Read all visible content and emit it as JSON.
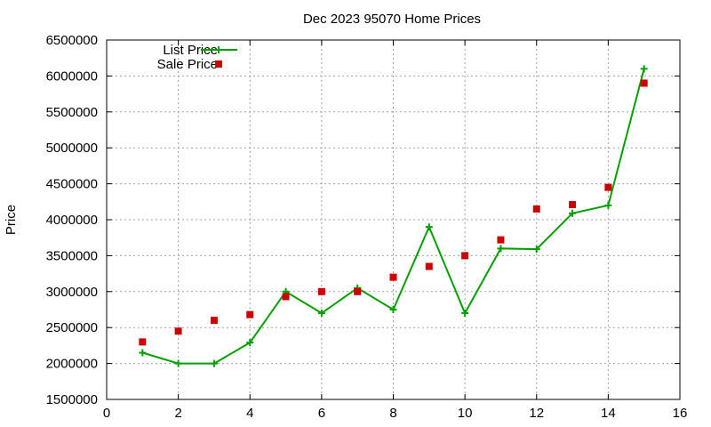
{
  "chart_data": {
    "type": "line",
    "title": "Dec 2023 95070 Home Prices",
    "xlabel": "",
    "ylabel": "Price",
    "xlim": [
      0,
      16
    ],
    "ylim": [
      1500000,
      6500000
    ],
    "x_ticks": [
      0,
      2,
      4,
      6,
      8,
      10,
      12,
      14,
      16
    ],
    "y_ticks": [
      1500000,
      2000000,
      2500000,
      3000000,
      3500000,
      4000000,
      4500000,
      5000000,
      5500000,
      6000000,
      6500000
    ],
    "grid": true,
    "legend_position": "top-left",
    "series": [
      {
        "name": "List Price",
        "style": "line-with-plus-markers",
        "color": "#00a000",
        "x": [
          1,
          2,
          3,
          4,
          5,
          6,
          7,
          8,
          9,
          10,
          11,
          12,
          13,
          14,
          15
        ],
        "values": [
          2150000,
          2000000,
          2000000,
          2290000,
          3000000,
          2700000,
          3050000,
          2750000,
          3900000,
          2700000,
          3600000,
          3590000,
          4090000,
          4200000,
          6100000
        ]
      },
      {
        "name": "Sale Price",
        "style": "square-markers",
        "color": "#cc0000",
        "x": [
          1,
          2,
          3,
          4,
          5,
          6,
          7,
          8,
          9,
          10,
          11,
          12,
          13,
          14,
          15
        ],
        "values": [
          2300000,
          2450000,
          2600000,
          2680000,
          2930000,
          3000000,
          3000000,
          3200000,
          3350000,
          3500000,
          3720000,
          4150000,
          4210000,
          4450000,
          5900000
        ]
      }
    ]
  }
}
